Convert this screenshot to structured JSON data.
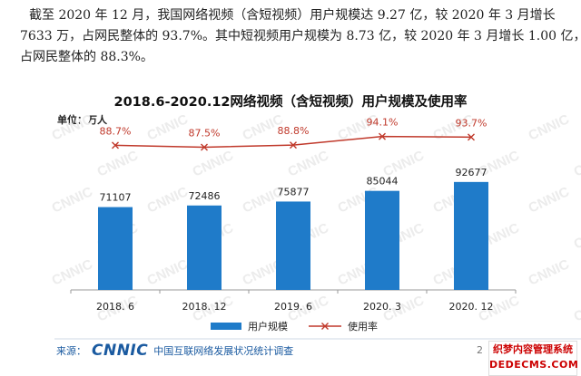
{
  "paragraph": {
    "line1": "截至 2020 年 12 月，我国网络视频（含短视频）用户规模达 9.27 亿，较 2020 年 3 月增长",
    "line2": "7633 万，占网民整体的 93.7%。其中短视频用户规模为 8.73 亿，较 2020 年 3 月增长 1.00 亿，",
    "line3": "占网民整体的 88.3%。"
  },
  "chart_data": {
    "type": "bar",
    "title": "2018.6-2020.12网络视频（含短视频）用户规模及使用率",
    "unit_label": "单位：万人",
    "categories": [
      "2018. 6",
      "2018. 12",
      "2019. 6",
      "2020. 3",
      "2020. 12"
    ],
    "series": [
      {
        "name": "用户规模",
        "type": "bar",
        "color": "#1f7bc9",
        "values": [
          71107,
          72486,
          75877,
          85044,
          92677
        ],
        "labels": [
          "71107",
          "72486",
          "75877",
          "85044",
          "92677"
        ]
      },
      {
        "name": "使用率",
        "type": "line",
        "color": "#c0392b",
        "values": [
          88.7,
          87.5,
          88.8,
          94.1,
          93.7
        ],
        "labels": [
          "88.7%",
          "87.5%",
          "88.8%",
          "94.1%",
          "93.7%"
        ]
      }
    ],
    "ylim": [
      0,
      140000
    ],
    "rate_ylim": [
      0,
      100
    ],
    "legend_position": "bottom",
    "grid": false,
    "watermark": "CNNIC"
  },
  "footer": {
    "source_label": "来源：",
    "logo_text": "CNNIC",
    "org_text": "中国互联网络发展状况统计调查",
    "page_number": "2"
  },
  "corner_watermark": {
    "line1": "织梦内容管理系统",
    "line2": "DEDECMS.COM"
  }
}
